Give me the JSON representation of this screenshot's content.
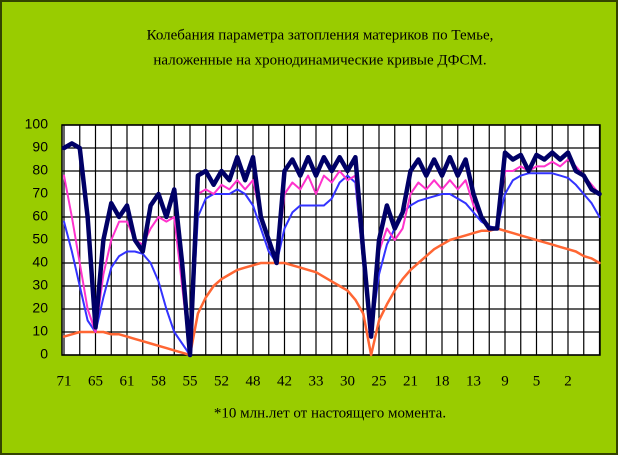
{
  "chart_data": {
    "type": "line",
    "title_lines": [
      "Колебания параметра затопления материков по Темье,",
      "наложенные на хронодинамические кривые ДФСМ."
    ],
    "x_label": "*10 млн.лет от настоящего момента.",
    "categories": [
      "71",
      null,
      null,
      null,
      "65",
      null,
      null,
      null,
      "61",
      null,
      null,
      null,
      "58",
      null,
      null,
      null,
      "55",
      null,
      null,
      null,
      "52",
      null,
      null,
      null,
      "48",
      null,
      null,
      null,
      "42",
      null,
      null,
      null,
      "33",
      null,
      null,
      null,
      "30",
      null,
      null,
      null,
      "25",
      null,
      null,
      null,
      "21",
      null,
      null,
      null,
      "18",
      null,
      null,
      null,
      "13",
      null,
      null,
      null,
      "9",
      null,
      null,
      null,
      "5",
      null,
      null,
      null,
      "2",
      null,
      null,
      null,
      null
    ],
    "ylim": [
      0,
      100
    ],
    "yticks": [
      0,
      10,
      20,
      30,
      40,
      50,
      60,
      70,
      80,
      90,
      100
    ],
    "grid": true,
    "series": [
      {
        "color": "#ff6633",
        "width": 2.5,
        "values": [
          8,
          9,
          10,
          10,
          10,
          10,
          9,
          9,
          8,
          7,
          6,
          5,
          4,
          3,
          2,
          1,
          0,
          18,
          25,
          30,
          33,
          35,
          37,
          38,
          39,
          40,
          40,
          40,
          40,
          39,
          38,
          37,
          36,
          34,
          32,
          30,
          28,
          24,
          18,
          0,
          15,
          22,
          28,
          33,
          37,
          40,
          43,
          46,
          48,
          50,
          51,
          52,
          53,
          54,
          54,
          55,
          54,
          53,
          52,
          51,
          50,
          49,
          48,
          47,
          46,
          45,
          43,
          42,
          40
        ]
      },
      {
        "color": "#3333ff",
        "width": 2,
        "values": [
          58,
          45,
          30,
          15,
          10,
          25,
          38,
          43,
          45,
          45,
          44,
          40,
          32,
          20,
          10,
          5,
          0,
          60,
          68,
          70,
          70,
          70,
          72,
          70,
          65,
          55,
          45,
          40,
          55,
          62,
          65,
          65,
          65,
          65,
          68,
          75,
          78,
          75,
          40,
          10,
          35,
          48,
          55,
          62,
          65,
          67,
          68,
          69,
          70,
          70,
          68,
          66,
          62,
          58,
          56,
          55,
          70,
          76,
          78,
          79,
          79,
          79,
          79,
          78,
          77,
          74,
          70,
          66,
          60
        ]
      },
      {
        "color": "#ff33cc",
        "width": 2,
        "values": [
          78,
          60,
          40,
          20,
          10,
          35,
          50,
          58,
          58,
          50,
          48,
          55,
          60,
          58,
          60,
          30,
          0,
          70,
          72,
          70,
          74,
          72,
          76,
          72,
          76,
          60,
          48,
          40,
          70,
          75,
          72,
          78,
          70,
          78,
          75,
          80,
          76,
          78,
          40,
          10,
          45,
          55,
          50,
          55,
          70,
          75,
          72,
          76,
          72,
          76,
          72,
          76,
          65,
          60,
          55,
          55,
          80,
          80,
          82,
          80,
          82,
          82,
          84,
          82,
          85,
          82,
          78,
          74,
          70
        ]
      },
      {
        "color": "#000066",
        "width": 4.5,
        "values": [
          90,
          92,
          90,
          60,
          12,
          50,
          66,
          60,
          65,
          50,
          45,
          65,
          70,
          60,
          72,
          40,
          0,
          78,
          80,
          74,
          80,
          76,
          86,
          76,
          86,
          60,
          50,
          40,
          80,
          85,
          78,
          86,
          78,
          86,
          80,
          86,
          80,
          86,
          45,
          8,
          50,
          65,
          55,
          62,
          80,
          85,
          78,
          85,
          78,
          86,
          78,
          85,
          70,
          60,
          55,
          55,
          88,
          85,
          87,
          80,
          87,
          85,
          88,
          85,
          88,
          80,
          78,
          72,
          70
        ]
      }
    ]
  }
}
